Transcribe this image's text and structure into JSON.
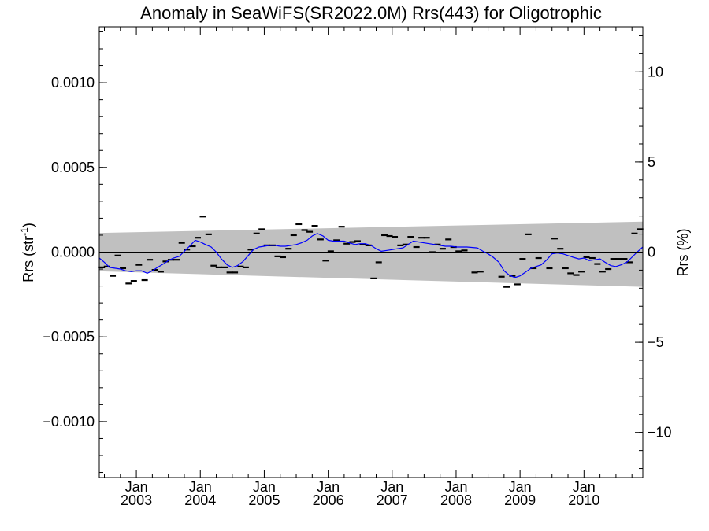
{
  "chart_data": {
    "type": "scatter",
    "title": "Anomaly in SeaWiFS(SR2022.0M) Rrs(443) for Oligotrophic",
    "ylabel_left": "Rrs (str",
    "ylabel_left_sup": "-1",
    "ylabel_left_close": ")",
    "ylabel_right": "Rrs (%)",
    "xlim": [
      2002.42,
      2010.92
    ],
    "ylim": [
      -0.00133,
      0.00133
    ],
    "y2lim": [
      -12.5,
      12.5
    ],
    "x_ticks": [
      {
        "value": 2003.0,
        "month": "Jan",
        "year": "2003"
      },
      {
        "value": 2004.0,
        "month": "Jan",
        "year": "2004"
      },
      {
        "value": 2005.0,
        "month": "Jan",
        "year": "2005"
      },
      {
        "value": 2006.0,
        "month": "Jan",
        "year": "2006"
      },
      {
        "value": 2007.0,
        "month": "Jan",
        "year": "2007"
      },
      {
        "value": 2008.0,
        "month": "Jan",
        "year": "2008"
      },
      {
        "value": 2009.0,
        "month": "Jan",
        "year": "2009"
      },
      {
        "value": 2010.0,
        "month": "Jan",
        "year": "2010"
      }
    ],
    "y_ticks": [
      {
        "value": 0.001,
        "label": "0.0010"
      },
      {
        "value": 0.0005,
        "label": "0.0005"
      },
      {
        "value": 0.0,
        "label": "0.0000"
      },
      {
        "value": -0.0005,
        "label": "−0.0005"
      },
      {
        "value": -0.001,
        "label": "−0.0010"
      }
    ],
    "y2_ticks": [
      {
        "value": 10,
        "label": "10"
      },
      {
        "value": 5,
        "label": "5"
      },
      {
        "value": 0,
        "label": "0"
      },
      {
        "value": -5,
        "label": "−5"
      },
      {
        "value": -10,
        "label": "−10"
      }
    ],
    "band": {
      "x": [
        2002.42,
        2010.92
      ],
      "upper": [
        0.000113,
        0.00018
      ],
      "lower": [
        -0.000113,
        -0.000205
      ],
      "color": "#c0c0c0"
    },
    "zero_line": 0.0,
    "points": {
      "color": "#000000",
      "x": [
        2002.46,
        2002.54,
        2002.63,
        2002.71,
        2002.79,
        2002.88,
        2002.96,
        2003.04,
        2003.13,
        2003.21,
        2003.29,
        2003.38,
        2003.46,
        2003.54,
        2003.63,
        2003.71,
        2003.79,
        2003.88,
        2003.96,
        2004.04,
        2004.13,
        2004.21,
        2004.29,
        2004.38,
        2004.46,
        2004.54,
        2004.63,
        2004.71,
        2004.79,
        2004.88,
        2004.96,
        2005.04,
        2005.13,
        2005.21,
        2005.29,
        2005.38,
        2005.46,
        2005.54,
        2005.63,
        2005.71,
        2005.79,
        2005.88,
        2005.96,
        2006.04,
        2006.13,
        2006.21,
        2006.29,
        2006.38,
        2006.46,
        2006.54,
        2006.63,
        2006.71,
        2006.79,
        2006.88,
        2006.96,
        2007.04,
        2007.13,
        2007.21,
        2007.29,
        2007.38,
        2007.46,
        2007.54,
        2007.63,
        2007.71,
        2007.79,
        2007.88,
        2007.96,
        2008.04,
        2008.13,
        2008.29,
        2008.38,
        2008.71,
        2008.79,
        2008.88,
        2008.96,
        2009.04,
        2009.13,
        2009.21,
        2009.29,
        2009.46,
        2009.54,
        2009.63,
        2009.71,
        2009.79,
        2009.88,
        2009.96,
        2010.04,
        2010.13,
        2010.21,
        2010.29,
        2010.38,
        2010.46,
        2010.54,
        2010.63,
        2010.71,
        2010.79,
        2010.88
      ],
      "y": [
        -9e-05,
        -8.5e-05,
        -0.00014,
        -2e-05,
        -9.5e-05,
        -0.000185,
        -0.00017,
        -7.5e-05,
        -0.000165,
        -4.5e-05,
        -0.000105,
        -0.000115,
        -5.5e-05,
        -4.5e-05,
        -4.5e-05,
        5.5e-05,
        1.5e-05,
        3.5e-05,
        8.5e-05,
        0.00021,
        0.000105,
        -8e-05,
        -9e-05,
        -9e-05,
        -0.00012,
        -0.00012,
        -8.5e-05,
        -9e-05,
        1.5e-05,
        0.00011,
        0.000135,
        4e-05,
        4e-05,
        -2.5e-05,
        -3e-05,
        2e-05,
        0.0001,
        0.000165,
        0.00013,
        0.00012,
        0.000155,
        7.5e-05,
        -5e-05,
        5e-06,
        7e-05,
        0.00015,
        5e-05,
        6e-05,
        6.5e-05,
        4.5e-05,
        4e-05,
        -0.000155,
        -6e-05,
        0.0001,
        9.5e-05,
        9e-05,
        4e-05,
        4.5e-05,
        9e-05,
        3e-05,
        8.5e-05,
        8.5e-05,
        0.0,
        4.5e-05,
        2e-05,
        7.5e-05,
        3e-05,
        5e-06,
        1e-05,
        -0.00012,
        -0.000115,
        -0.000145,
        -0.000205,
        -0.00014,
        -0.00019,
        -4e-05,
        0.000105,
        -9.5e-05,
        -3.5e-05,
        -9.5e-05,
        8e-05,
        2e-05,
        -9.5e-05,
        -0.000125,
        -0.000135,
        -0.000115,
        -3e-05,
        -3.5e-05,
        -7e-05,
        -0.000115,
        -0.0001,
        -4e-05,
        -4e-05,
        -4e-05,
        -6e-05,
        0.00011,
        0.000135
      ]
    },
    "smooth_line": {
      "color": "#0000ff",
      "x": [
        2002.42,
        2002.5,
        2002.58,
        2002.67,
        2002.75,
        2002.83,
        2002.92,
        2003.0,
        2003.08,
        2003.17,
        2003.25,
        2003.33,
        2003.42,
        2003.5,
        2003.58,
        2003.67,
        2003.75,
        2003.83,
        2003.92,
        2004.0,
        2004.08,
        2004.17,
        2004.25,
        2004.33,
        2004.42,
        2004.5,
        2004.58,
        2004.67,
        2004.75,
        2004.83,
        2004.92,
        2005.0,
        2005.08,
        2005.17,
        2005.25,
        2005.33,
        2005.42,
        2005.5,
        2005.58,
        2005.67,
        2005.75,
        2005.83,
        2005.92,
        2006.0,
        2006.08,
        2006.17,
        2006.25,
        2006.33,
        2006.42,
        2006.5,
        2006.58,
        2006.67,
        2006.75,
        2006.83,
        2006.92,
        2007.0,
        2007.08,
        2007.17,
        2007.25,
        2007.33,
        2007.42,
        2007.5,
        2007.58,
        2007.67,
        2007.75,
        2007.83,
        2007.92,
        2008.0,
        2008.17,
        2008.33,
        2008.42,
        2008.5,
        2008.58,
        2008.67,
        2008.75,
        2008.83,
        2008.92,
        2009.0,
        2009.08,
        2009.17,
        2009.25,
        2009.33,
        2009.42,
        2009.5,
        2009.58,
        2009.67,
        2009.75,
        2009.83,
        2009.92,
        2010.0,
        2010.08,
        2010.17,
        2010.25,
        2010.33,
        2010.42,
        2010.5,
        2010.58,
        2010.67,
        2010.75,
        2010.83,
        2010.92
      ],
      "y": [
        -3.5e-05,
        -6e-05,
        -9e-05,
        -9.5e-05,
        -0.0001,
        -0.00011,
        -0.000115,
        -0.00011,
        -0.00011,
        -0.000125,
        -0.00011,
        -9e-05,
        -7e-05,
        -5e-05,
        -3.5e-05,
        -2.5e-05,
        5e-06,
        3.5e-05,
        7e-05,
        6e-05,
        4.5e-05,
        3e-05,
        0.0,
        -4e-05,
        -7.5e-05,
        -9e-05,
        -8e-05,
        -5.5e-05,
        -2e-05,
        1.5e-05,
        3e-05,
        3.5e-05,
        4e-05,
        4e-05,
        3.5e-05,
        3.5e-05,
        4e-05,
        4.5e-05,
        5.5e-05,
        7e-05,
        9.5e-05,
        0.00011,
        9.5e-05,
        7e-05,
        6.5e-05,
        6.5e-05,
        6.5e-05,
        5.5e-05,
        4.5e-05,
        5e-05,
        5e-05,
        4e-05,
        2e-05,
        5e-06,
        1e-05,
        1.5e-05,
        2e-05,
        2.5e-05,
        4.5e-05,
        6.5e-05,
        6e-05,
        5.5e-05,
        5e-05,
        4.5e-05,
        4e-05,
        3.5e-05,
        3.5e-05,
        3e-05,
        3e-05,
        2.5e-05,
        5e-06,
        -1e-05,
        -3e-05,
        -6e-05,
        -0.00011,
        -0.000135,
        -0.00015,
        -0.00014,
        -0.00012,
        -9.5e-05,
        -8.5e-05,
        -7.5e-05,
        -4.5e-05,
        -1e-05,
        -5e-06,
        -1e-05,
        -2e-05,
        -3e-05,
        -4e-05,
        -3.5e-05,
        -5e-05,
        -4.5e-05,
        -4e-05,
        -6e-05,
        -8e-05,
        -8.5e-05,
        -7.5e-05,
        -6e-05,
        -3e-05,
        0.0,
        3e-05
      ]
    }
  }
}
